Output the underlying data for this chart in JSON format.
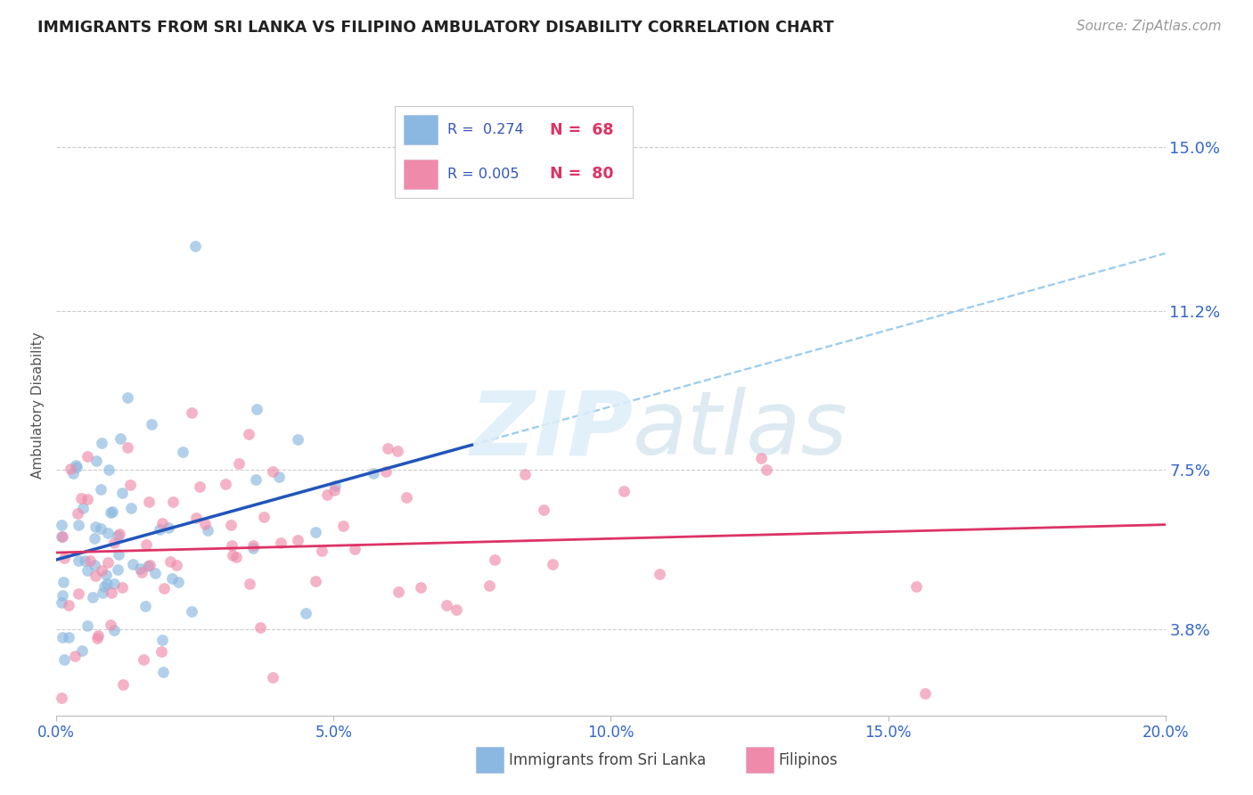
{
  "title": "IMMIGRANTS FROM SRI LANKA VS FILIPINO AMBULATORY DISABILITY CORRELATION CHART",
  "source": "Source: ZipAtlas.com",
  "xlabel_ticks": [
    "0.0%",
    "5.0%",
    "10.0%",
    "15.0%",
    "20.0%"
  ],
  "xlabel_tick_vals": [
    0.0,
    0.05,
    0.1,
    0.15,
    0.2
  ],
  "ylabel_ticks": [
    "3.8%",
    "7.5%",
    "11.2%",
    "15.0%"
  ],
  "ylabel_tick_vals": [
    0.038,
    0.075,
    0.112,
    0.15
  ],
  "xmin": 0.0,
  "xmax": 0.2,
  "ymin": 0.018,
  "ymax": 0.162,
  "watermark_zip": "ZIP",
  "watermark_atlas": "atlas",
  "color_blue": "#8ab8e0",
  "color_pink": "#f08aaa",
  "color_trendline_blue": "#2255bb",
  "color_trendline_pink": "#dd3366",
  "color_trendline_dashed": "#99ccee",
  "ylabel": "Ambulatory Disability",
  "legend_r1_val": "0.274",
  "legend_n1_val": "68",
  "legend_r2_val": "0.005",
  "legend_n2_val": "80"
}
